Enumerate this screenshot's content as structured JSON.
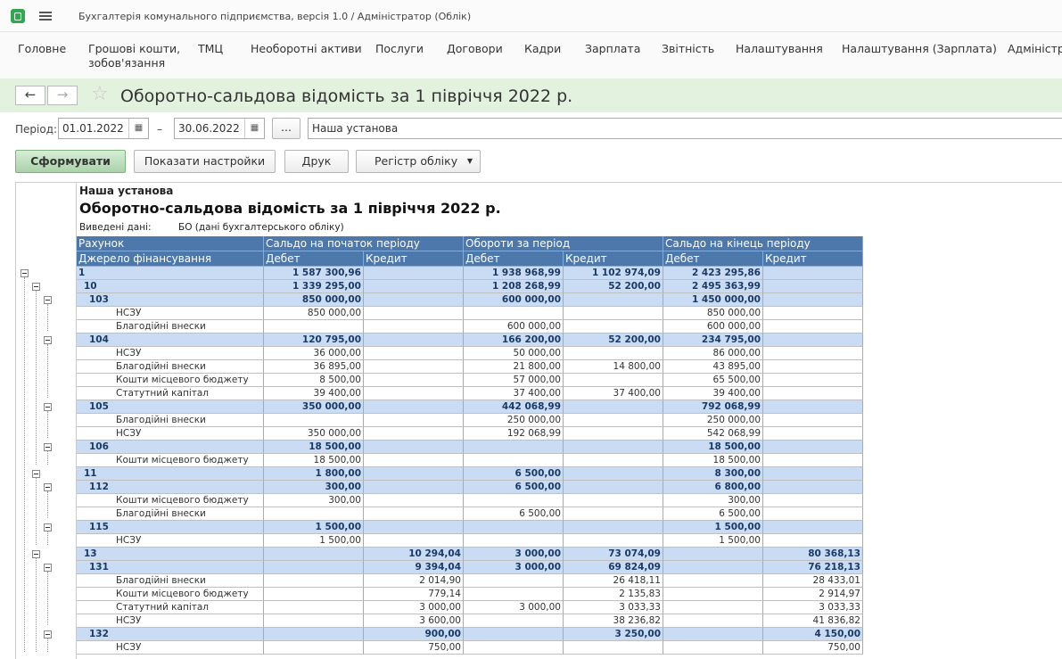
{
  "window_title": "Бухгалтерія комунального підприємства, версія 1.0 / Адміністратор  (Облік)",
  "menu": [
    "Головне",
    "Грошові кошти, зобов'язання",
    "ТМЦ",
    "Необоротні активи",
    "Послуги",
    "Договори",
    "Кадри",
    "Зарплата",
    "Звітність",
    "Налаштування",
    "Налаштування (Зарплата)",
    "Адміністрування"
  ],
  "header": {
    "title": "Оборотно-сальдова відомість за 1 півріччя 2022 р."
  },
  "filters": {
    "period_label": "Період:",
    "date_from": "01.01.2022",
    "dash": "–",
    "date_to": "30.06.2022",
    "more": "...",
    "organization": "Наша установа"
  },
  "buttons": [
    "Сформувати",
    "Показати настройки",
    "Друк",
    "Регістр обліку"
  ],
  "report": {
    "organization": "Наша установа",
    "title": "Оборотно-сальдова відомість за 1 півріччя 2022 р.",
    "data_label": "Виведені дані:",
    "data_value": "БО (дані бухгалтерського обліку)",
    "header_row1": [
      "Рахунок",
      "Сальдо на початок періоду",
      "Обороти за період",
      "Сальдо на кінець періоду"
    ],
    "header_row2": [
      "Джерело фінансування",
      "Дебет",
      "Кредит",
      "Дебет",
      "Кредит",
      "Дебет",
      "Кредит"
    ],
    "rows": [
      {
        "level": 0,
        "group": true,
        "cells": [
          "1",
          "1 587 300,96",
          null,
          "1 938 968,99",
          "1 102 974,09",
          "2 423 295,86",
          null
        ]
      },
      {
        "level": 1,
        "group": true,
        "cells": [
          "10",
          "1 339 295,00",
          null,
          "1 208 268,99",
          "52 200,00",
          "2 495 363,99",
          null
        ]
      },
      {
        "level": 2,
        "group": true,
        "cells": [
          "103",
          "850 000,00",
          null,
          "600 000,00",
          null,
          "1 450 000,00",
          null
        ]
      },
      {
        "level": 3,
        "group": false,
        "cells": [
          "НСЗУ",
          "850 000,00",
          null,
          null,
          null,
          "850 000,00",
          null
        ]
      },
      {
        "level": 3,
        "group": false,
        "cells": [
          "Благодійні внески",
          null,
          null,
          "600 000,00",
          null,
          "600 000,00",
          null
        ]
      },
      {
        "level": 2,
        "group": true,
        "cells": [
          "104",
          "120 795,00",
          null,
          "166 200,00",
          "52 200,00",
          "234 795,00",
          null
        ]
      },
      {
        "level": 3,
        "group": false,
        "cells": [
          "НСЗУ",
          "36 000,00",
          null,
          "50 000,00",
          null,
          "86 000,00",
          null
        ]
      },
      {
        "level": 3,
        "group": false,
        "cells": [
          "Благодійні внески",
          "36 895,00",
          null,
          "21 800,00",
          "14 800,00",
          "43 895,00",
          null
        ]
      },
      {
        "level": 3,
        "group": false,
        "cells": [
          "Кошти місцевого бюджету",
          "8 500,00",
          null,
          "57 000,00",
          null,
          "65 500,00",
          null
        ]
      },
      {
        "level": 3,
        "group": false,
        "cells": [
          "Статутний капітал",
          "39 400,00",
          null,
          "37 400,00",
          "37 400,00",
          "39 400,00",
          null
        ]
      },
      {
        "level": 2,
        "group": true,
        "cells": [
          "105",
          "350 000,00",
          null,
          "442 068,99",
          null,
          "792 068,99",
          null
        ]
      },
      {
        "level": 3,
        "group": false,
        "cells": [
          "Благодійні внески",
          null,
          null,
          "250 000,00",
          null,
          "250 000,00",
          null
        ]
      },
      {
        "level": 3,
        "group": false,
        "cells": [
          "НСЗУ",
          "350 000,00",
          null,
          "192 068,99",
          null,
          "542 068,99",
          null
        ]
      },
      {
        "level": 2,
        "group": true,
        "cells": [
          "106",
          "18 500,00",
          null,
          null,
          null,
          "18 500,00",
          null
        ]
      },
      {
        "level": 3,
        "group": false,
        "cells": [
          "Кошти місцевого бюджету",
          "18 500,00",
          null,
          null,
          null,
          "18 500,00",
          null
        ]
      },
      {
        "level": 1,
        "group": true,
        "cells": [
          "11",
          "1 800,00",
          null,
          "6 500,00",
          null,
          "8 300,00",
          null
        ]
      },
      {
        "level": 2,
        "group": true,
        "cells": [
          "112",
          "300,00",
          null,
          "6 500,00",
          null,
          "6 800,00",
          null
        ]
      },
      {
        "level": 3,
        "group": false,
        "cells": [
          "Кошти місцевого бюджету",
          "300,00",
          null,
          null,
          null,
          "300,00",
          null
        ]
      },
      {
        "level": 3,
        "group": false,
        "cells": [
          "Благодійні внески",
          null,
          null,
          "6 500,00",
          null,
          "6 500,00",
          null
        ]
      },
      {
        "level": 2,
        "group": true,
        "cells": [
          "115",
          "1 500,00",
          null,
          null,
          null,
          "1 500,00",
          null
        ]
      },
      {
        "level": 3,
        "group": false,
        "cells": [
          "НСЗУ",
          "1 500,00",
          null,
          null,
          null,
          "1 500,00",
          null
        ]
      },
      {
        "level": 1,
        "group": true,
        "cells": [
          "13",
          null,
          "10 294,04",
          "3 000,00",
          "73 074,09",
          null,
          "80 368,13"
        ]
      },
      {
        "level": 2,
        "group": true,
        "cells": [
          "131",
          null,
          "9 394,04",
          "3 000,00",
          "69 824,09",
          null,
          "76 218,13"
        ]
      },
      {
        "level": 3,
        "group": false,
        "cells": [
          "Благодійні внески",
          null,
          "2 014,90",
          null,
          "26 418,11",
          null,
          "28 433,01"
        ]
      },
      {
        "level": 3,
        "group": false,
        "cells": [
          "Кошти місцевого бюджету",
          null,
          "779,14",
          null,
          "2 135,83",
          null,
          "2 914,97"
        ]
      },
      {
        "level": 3,
        "group": false,
        "cells": [
          "Статутний капітал",
          null,
          "3 000,00",
          "3 000,00",
          "3 033,33",
          null,
          "3 033,33"
        ]
      },
      {
        "level": 3,
        "group": false,
        "cells": [
          "НСЗУ",
          null,
          "3 600,00",
          null,
          "38 236,82",
          null,
          "41 836,82"
        ]
      },
      {
        "level": 2,
        "group": true,
        "cells": [
          "132",
          null,
          "900,00",
          null,
          "3 250,00",
          null,
          "4 150,00"
        ]
      },
      {
        "level": 3,
        "group": false,
        "cells": [
          "НСЗУ",
          null,
          "750,00",
          null,
          null,
          null,
          "750,00"
        ]
      }
    ]
  }
}
